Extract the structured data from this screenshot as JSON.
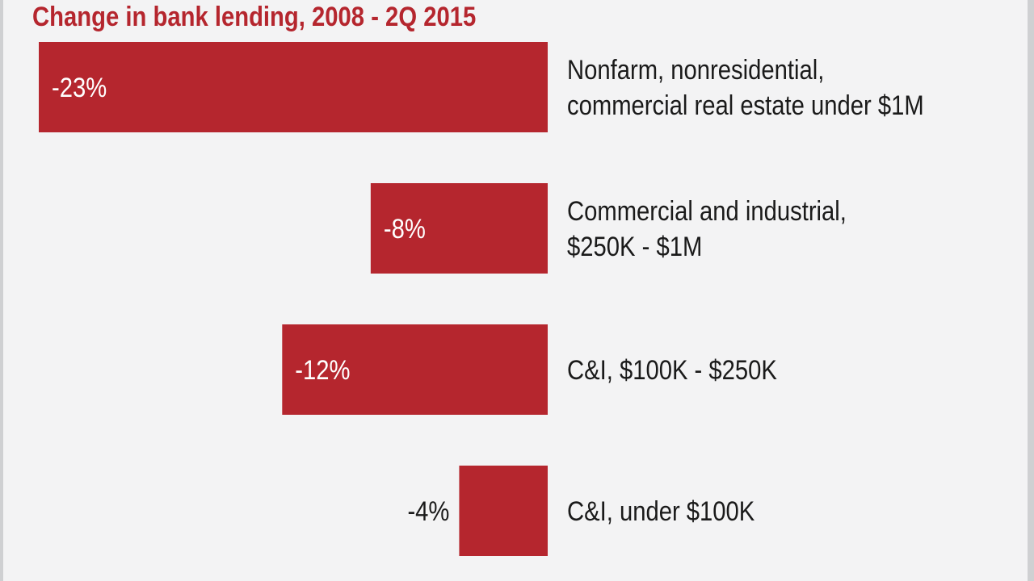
{
  "colors": {
    "bar": "#b5262e",
    "title": "#b5262e",
    "background": "#f3f3f4",
    "text": "#1a1a1a",
    "label_inside": "#ffffff"
  },
  "chart_data": {
    "type": "bar",
    "orientation": "horizontal",
    "title": "Change in bank lending, 2008 - 2Q 2015",
    "xlim": [
      -23,
      0
    ],
    "grid": false,
    "legend": "none",
    "categories": [
      [
        "Nonfarm, nonresidential,",
        "commercial real estate under $1M"
      ],
      [
        "Commercial and industrial,",
        "$250K - $1M"
      ],
      [
        "C&I, $100K - $250K"
      ],
      [
        "C&I, under $100K"
      ]
    ],
    "values": [
      -23,
      -8,
      -12,
      -4
    ],
    "value_labels": [
      "-23%",
      "-8%",
      "-12%",
      "-4%"
    ]
  }
}
